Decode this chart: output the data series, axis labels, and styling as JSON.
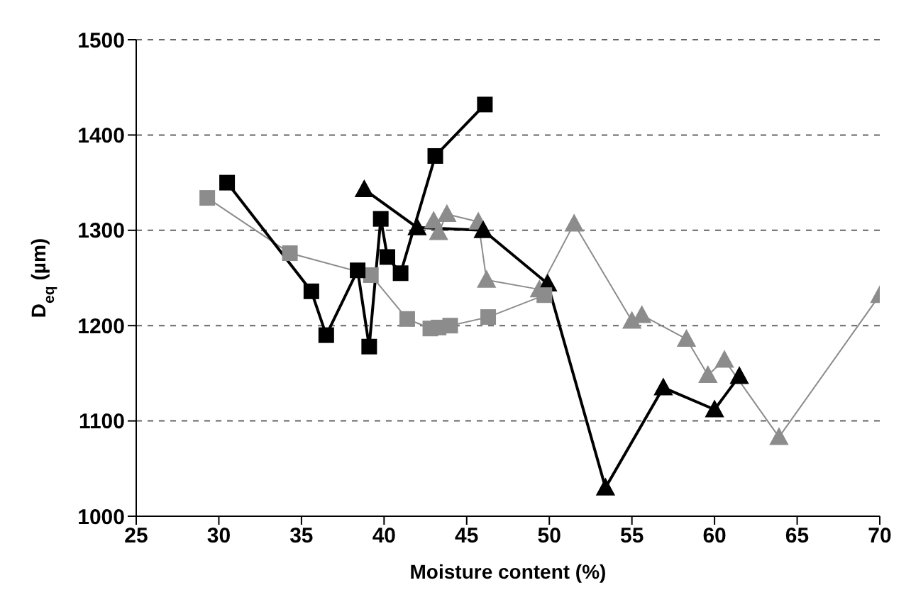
{
  "chart_data": {
    "type": "line",
    "xlabel": "Moisture content (%)",
    "ylabel": "D$_{eq}$ (µm)",
    "xlim": [
      25,
      70
    ],
    "xticks": [
      25,
      30,
      35,
      40,
      45,
      50,
      55,
      60,
      65,
      70
    ],
    "ylim": [
      1000,
      1500
    ],
    "yticks": [
      1000,
      1100,
      1200,
      1300,
      1400,
      1500
    ],
    "grid": "y",
    "line_style": "solid",
    "series": [
      {
        "color": "#000000",
        "marker": "square",
        "x": [
          30.5,
          35.6,
          36.5,
          38.4,
          39.1,
          39.8,
          40.2,
          41,
          43.1,
          46.1
        ],
        "values": [
          1350,
          1236,
          1190,
          1258,
          1178,
          1312,
          1272,
          1255,
          1378,
          1432
        ]
      },
      {
        "color": "#8c8c8c",
        "marker": "square",
        "x": [
          29.3,
          34.3,
          39.2,
          41.4,
          42.8,
          43.3,
          44,
          46.3,
          49.7
        ],
        "values": [
          1334,
          1276,
          1253,
          1207,
          1197,
          1198,
          1200,
          1209,
          1232
        ]
      },
      {
        "color": "#000000",
        "marker": "triangle",
        "x": [
          38.8,
          42,
          46,
          49.9,
          53.4,
          56.9,
          60,
          61.5
        ],
        "values": [
          1343,
          1303,
          1300,
          1244,
          1030,
          1135,
          1112,
          1147
        ]
      },
      {
        "color": "#8c8c8c",
        "marker": "triangle",
        "x": [
          43,
          43.3,
          43.8,
          45.7,
          46.2,
          49.4,
          51.5,
          55,
          55.6,
          58.3,
          59.6,
          60.6,
          63.9,
          70
        ],
        "values": [
          1310,
          1298,
          1317,
          1309,
          1248,
          1238,
          1307,
          1205,
          1211,
          1186,
          1148,
          1164,
          1083,
          1232
        ]
      }
    ]
  }
}
